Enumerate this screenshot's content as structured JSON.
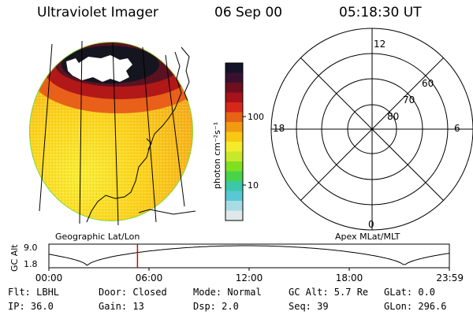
{
  "header": {
    "instrument": "Ultraviolet Imager",
    "date": "06 Sep 00",
    "time": "05:18:30 UT"
  },
  "colorbar": {
    "unit_label": "photon cm⁻²s⁻¹",
    "tick_high": "100",
    "tick_low": "10",
    "colors": [
      "#141428",
      "#3a1030",
      "#6e0f1e",
      "#a8121a",
      "#d6281a",
      "#e86414",
      "#f29a12",
      "#f8c814",
      "#f4ec2a",
      "#c8e82a",
      "#7ee020",
      "#48d44a",
      "#3cc8a8",
      "#58c8d4",
      "#a8dce4",
      "#dfe8ea"
    ]
  },
  "image_panel": {
    "label": "Geographic Lat/Lon",
    "colors": {
      "saturated": "#ffffff",
      "dark_core": "#15151f",
      "oval_dark": "#5a1222",
      "oval_red": "#b21818",
      "oval_orange": "#e8601a",
      "dayglow_orange": "#f2a418",
      "dayglow_yellow": "#fad21c",
      "dayglow_light": "#f8ee34",
      "limb": "#7cd83a"
    }
  },
  "polar_grid": {
    "label": "Apex MLat/MLT",
    "mlt_labels": {
      "top": "12",
      "bottom": "0",
      "left": "18",
      "right": "6"
    },
    "lat_labels": [
      "80",
      "70",
      "60"
    ]
  },
  "altitude_plot": {
    "y_axis_label": "GC Alt",
    "y_ticks": [
      "9.0",
      "1.8"
    ],
    "x_ticks": [
      "00:00",
      "06:00",
      "12:00",
      "18:00",
      "23:59"
    ],
    "marker_hour": 5.31,
    "marker_color": "#dd0000"
  },
  "status": {
    "row1": {
      "flt": "Flt: LBHL",
      "door": "Door: Closed",
      "mode": "Mode: Normal",
      "gc_alt": "GC Alt: 5.7 Re",
      "glat": "GLat:   0.0"
    },
    "row2": {
      "ip": "IP: 36.0",
      "gain": "Gain: 13",
      "dsp": "Dsp:    2.0",
      "seq": "Seq: 39",
      "glon": "GLon: 296.6"
    }
  }
}
